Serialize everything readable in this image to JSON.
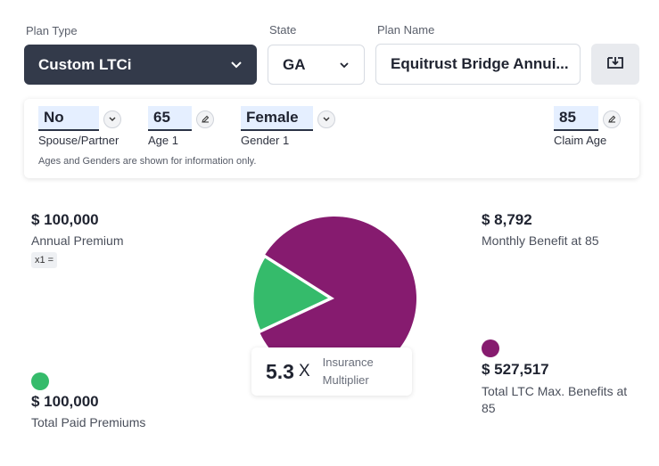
{
  "colors": {
    "dark_select": "#333a4a",
    "green": "#35bb6b",
    "purple": "#861b6f",
    "field_bg": "#e5efff"
  },
  "header": {
    "plan_type_label": "Plan Type",
    "plan_type_value": "Custom LTCi",
    "state_label": "State",
    "state_value": "GA",
    "plan_name_label": "Plan Name",
    "plan_name_value": "Equitrust Bridge Annui...",
    "download_icon": "download-icon"
  },
  "inputs": {
    "spouse": {
      "value": "No",
      "label": "Spouse/Partner"
    },
    "age1": {
      "value": "65",
      "label": "Age 1"
    },
    "gender1": {
      "value": "Female",
      "label": "Gender 1"
    },
    "claim_age": {
      "value": "85",
      "label": "Claim Age"
    },
    "note": "Ages and Genders are shown for information only."
  },
  "summary": {
    "annual_premium": {
      "amount": "$ 100,000",
      "label": "Annual Premium",
      "multiplier_chip": "x1 ="
    },
    "total_paid": {
      "amount": "$ 100,000",
      "label": "Total Paid Premiums"
    },
    "monthly_benefit": {
      "amount": "$ 8,792",
      "label": "Monthly Benefit at 85"
    },
    "total_ltc": {
      "amount": "$ 527,517",
      "label": "Total LTC Max. Benefits at 85"
    },
    "multiplier": {
      "value": "5.3",
      "suffix": "X",
      "label": "Insurance Multiplier"
    }
  },
  "chart_data": {
    "type": "pie",
    "slices": [
      {
        "name": "Total Paid Premiums",
        "value": 100000,
        "color": "#35bb6b"
      },
      {
        "name": "Total LTC Max. Benefits",
        "value": 527517,
        "color": "#861b6f"
      }
    ]
  }
}
